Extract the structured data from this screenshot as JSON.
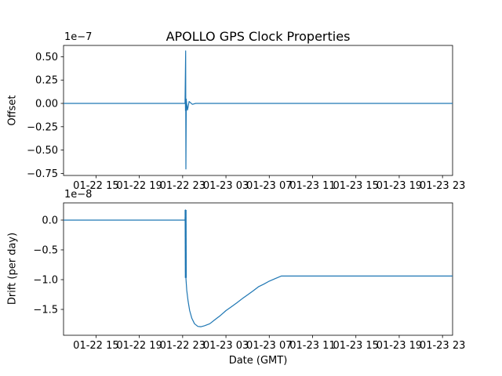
{
  "title": "APOLLO GPS Clock Properties",
  "xlabel": "Date (GMT)",
  "line_color": "#1f77b4",
  "background_color": "#ffffff",
  "chart_data": [
    {
      "type": "line",
      "name": "offset",
      "ylabel": "Offset",
      "scale_label": "1e−7",
      "ylim": [
        -0.772,
        0.621
      ],
      "yticks": [
        {
          "value": 0.5,
          "label": "0.50"
        },
        {
          "value": 0.25,
          "label": "0.25"
        },
        {
          "value": 0.0,
          "label": "0.00"
        },
        {
          "value": -0.25,
          "label": "−0.25"
        },
        {
          "value": -0.5,
          "label": "−0.50"
        },
        {
          "value": -0.75,
          "label": "−0.75"
        }
      ],
      "xlim_hours": [
        0,
        35.93
      ],
      "xticks": [
        {
          "hour": 3,
          "label": "01-22 15"
        },
        {
          "hour": 7,
          "label": "01-22 19"
        },
        {
          "hour": 11,
          "label": "01-22 23"
        },
        {
          "hour": 15,
          "label": "01-23 03"
        },
        {
          "hour": 19,
          "label": "01-23 07"
        },
        {
          "hour": 23,
          "label": "01-23 11"
        },
        {
          "hour": 27,
          "label": "01-23 15"
        },
        {
          "hour": 31,
          "label": "01-23 19"
        },
        {
          "hour": 35,
          "label": "01-23 23"
        }
      ],
      "series": [
        {
          "name": "offset-signal",
          "units": "1e-7",
          "width": 1.2,
          "points": [
            [
              0,
              0
            ],
            [
              11.22,
              0
            ],
            [
              11.28,
              0.562
            ],
            [
              11.3,
              -0.702
            ],
            [
              11.34,
              0.03
            ],
            [
              11.45,
              -0.07
            ],
            [
              11.6,
              0.02
            ],
            [
              11.9,
              -0.01
            ],
            [
              12.2,
              0
            ],
            [
              35.93,
              0
            ]
          ]
        },
        {
          "name": "offset-zero-crossing-emphasis",
          "units": "1e-7",
          "width": 2.4,
          "points": [
            [
              11.29,
              0.05
            ],
            [
              11.31,
              -0.08
            ]
          ]
        }
      ]
    },
    {
      "type": "line",
      "name": "drift",
      "ylabel": "Drift (per day)",
      "scale_label": "1e−8",
      "ylim": [
        -1.934,
        0.289
      ],
      "yticks": [
        {
          "value": 0.0,
          "label": "0.0"
        },
        {
          "value": -0.5,
          "label": "−0.5"
        },
        {
          "value": -1.0,
          "label": "−1.0"
        },
        {
          "value": -1.5,
          "label": "−1.5"
        }
      ],
      "xlim_hours": [
        0,
        35.93
      ],
      "xticks": [
        {
          "hour": 3,
          "label": "01-22 15"
        },
        {
          "hour": 7,
          "label": "01-22 19"
        },
        {
          "hour": 11,
          "label": "01-22 23"
        },
        {
          "hour": 15,
          "label": "01-23 03"
        },
        {
          "hour": 19,
          "label": "01-23 07"
        },
        {
          "hour": 23,
          "label": "01-23 11"
        },
        {
          "hour": 27,
          "label": "01-23 15"
        },
        {
          "hour": 31,
          "label": "01-23 19"
        },
        {
          "hour": 35,
          "label": "01-23 23"
        }
      ],
      "series": [
        {
          "name": "drift-signal",
          "units": "1e-8",
          "width": 1.2,
          "points": [
            [
              0,
              0
            ],
            [
              11.22,
              0
            ],
            [
              11.26,
              0.17
            ],
            [
              11.3,
              -0.97
            ],
            [
              11.38,
              -1.18
            ],
            [
              11.5,
              -1.36
            ],
            [
              11.65,
              -1.52
            ],
            [
              11.85,
              -1.65
            ],
            [
              12.1,
              -1.74
            ],
            [
              12.4,
              -1.785
            ],
            [
              12.7,
              -1.79
            ],
            [
              13.0,
              -1.775
            ],
            [
              13.5,
              -1.74
            ],
            [
              14.0,
              -1.67
            ],
            [
              14.5,
              -1.6
            ],
            [
              15.0,
              -1.52
            ],
            [
              15.5,
              -1.455
            ],
            [
              16.0,
              -1.39
            ],
            [
              16.5,
              -1.32
            ],
            [
              17.0,
              -1.255
            ],
            [
              17.5,
              -1.19
            ],
            [
              18.0,
              -1.12
            ],
            [
              18.5,
              -1.075
            ],
            [
              19.0,
              -1.025
            ],
            [
              19.5,
              -0.985
            ],
            [
              20.1,
              -0.94
            ],
            [
              35.93,
              -0.94
            ]
          ]
        },
        {
          "name": "drift-step-emphasis",
          "units": "1e-8",
          "width": 2.4,
          "points": [
            [
              11.27,
              0.17
            ],
            [
              11.29,
              -0.97
            ]
          ]
        }
      ]
    }
  ]
}
